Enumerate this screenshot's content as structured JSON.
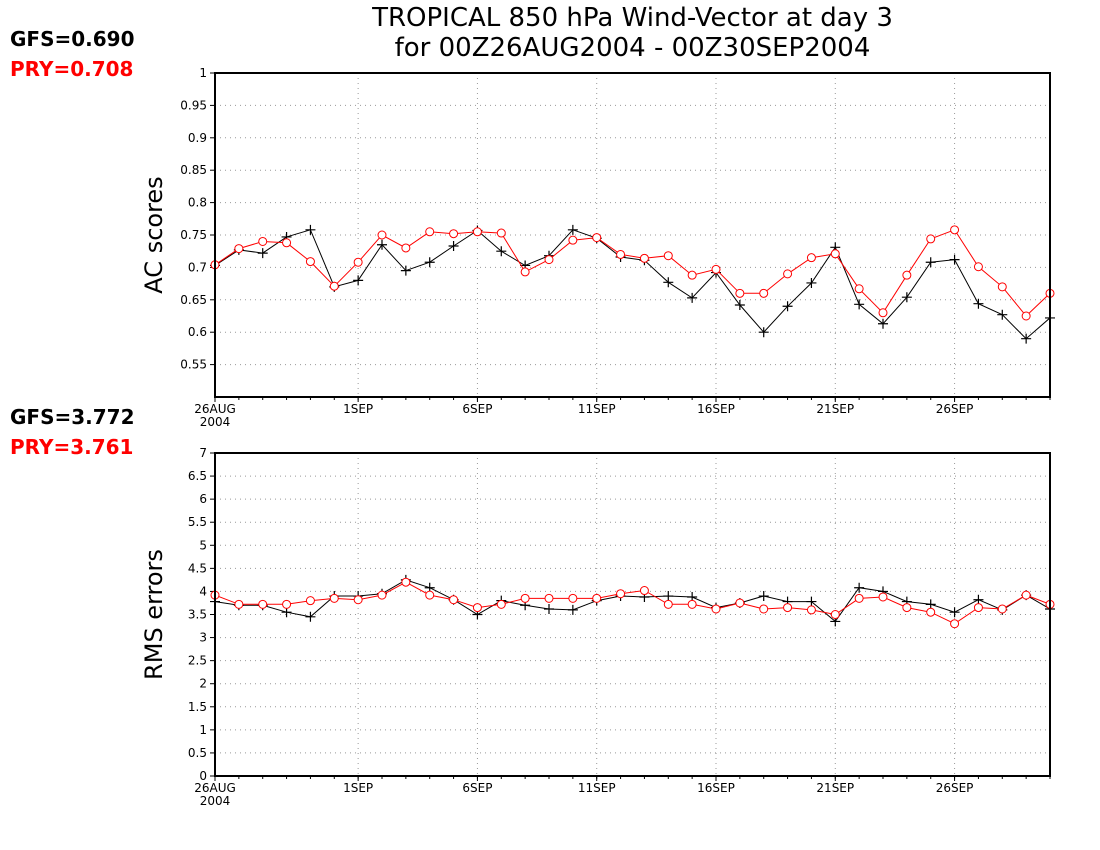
{
  "title_line1": "TROPICAL 850 hPa Wind-Vector at day 3",
  "title_line2": "for 00Z26AUG2004 - 00Z30SEP2004",
  "colors": {
    "GFS": "#000000",
    "PRY": "#ff0000"
  },
  "x_tick_labels": [
    "26AUG",
    "1SEP",
    "6SEP",
    "11SEP",
    "16SEP",
    "21SEP",
    "26SEP"
  ],
  "x_year_label": "2004",
  "chart_data": [
    {
      "type": "line",
      "ylabel": "AC scores",
      "ylim": [
        0.5,
        1.0
      ],
      "yticks": [
        "0.55",
        "0.6",
        "0.65",
        "0.7",
        "0.75",
        "0.8",
        "0.85",
        "0.9",
        "0.95",
        "1"
      ],
      "grid": true,
      "score_text": [
        {
          "series": "GFS",
          "text": "GFS=0.690"
        },
        {
          "series": "PRY",
          "text": "PRY=0.708"
        }
      ],
      "x": [
        "26AUG",
        "27AUG",
        "28AUG",
        "29AUG",
        "30AUG",
        "31AUG",
        "1SEP",
        "2SEP",
        "3SEP",
        "4SEP",
        "5SEP",
        "6SEP",
        "7SEP",
        "8SEP",
        "9SEP",
        "10SEP",
        "11SEP",
        "12SEP",
        "13SEP",
        "14SEP",
        "15SEP",
        "16SEP",
        "17SEP",
        "18SEP",
        "19SEP",
        "20SEP",
        "21SEP",
        "22SEP",
        "23SEP",
        "24SEP",
        "25SEP",
        "26SEP",
        "27SEP",
        "28SEP",
        "29SEP",
        "30SEP"
      ],
      "series": [
        {
          "name": "GFS",
          "marker": "+",
          "values": [
            0.703,
            0.727,
            0.722,
            0.747,
            0.758,
            0.67,
            0.68,
            0.735,
            0.695,
            0.708,
            0.733,
            0.757,
            0.725,
            0.703,
            0.718,
            0.758,
            0.745,
            0.716,
            0.711,
            0.677,
            0.653,
            0.692,
            0.642,
            0.6,
            0.64,
            0.676,
            0.731,
            0.643,
            0.613,
            0.654,
            0.708,
            0.712,
            0.644,
            0.627,
            0.59,
            0.622
          ]
        },
        {
          "name": "PRY",
          "marker": "o",
          "values": [
            0.704,
            0.729,
            0.74,
            0.738,
            0.709,
            0.671,
            0.708,
            0.75,
            0.73,
            0.755,
            0.752,
            0.755,
            0.753,
            0.693,
            0.712,
            0.742,
            0.746,
            0.72,
            0.714,
            0.718,
            0.688,
            0.697,
            0.66,
            0.66,
            0.69,
            0.715,
            0.721,
            0.667,
            0.63,
            0.688,
            0.744,
            0.758,
            0.701,
            0.67,
            0.625,
            0.66
          ]
        }
      ]
    },
    {
      "type": "line",
      "ylabel": "RMS errors",
      "ylim": [
        0,
        7
      ],
      "yticks": [
        "0",
        "0.5",
        "1",
        "1.5",
        "2",
        "2.5",
        "3",
        "3.5",
        "4",
        "4.5",
        "5",
        "5.5",
        "6",
        "6.5",
        "7"
      ],
      "grid": true,
      "score_text": [
        {
          "series": "GFS",
          "text": "GFS=3.772"
        },
        {
          "series": "PRY",
          "text": "PRY=3.761"
        }
      ],
      "x": [
        "26AUG",
        "27AUG",
        "28AUG",
        "29AUG",
        "30AUG",
        "31AUG",
        "1SEP",
        "2SEP",
        "3SEP",
        "4SEP",
        "5SEP",
        "6SEP",
        "7SEP",
        "8SEP",
        "9SEP",
        "10SEP",
        "11SEP",
        "12SEP",
        "13SEP",
        "14SEP",
        "15SEP",
        "16SEP",
        "17SEP",
        "18SEP",
        "19SEP",
        "20SEP",
        "21SEP",
        "22SEP",
        "23SEP",
        "24SEP",
        "25SEP",
        "26SEP",
        "27SEP",
        "28SEP",
        "29SEP",
        "30SEP"
      ],
      "series": [
        {
          "name": "GFS",
          "marker": "+",
          "values": [
            3.78,
            3.7,
            3.7,
            3.55,
            3.45,
            3.9,
            3.9,
            3.95,
            4.25,
            4.08,
            3.82,
            3.5,
            3.8,
            3.7,
            3.62,
            3.6,
            3.8,
            3.9,
            3.88,
            3.9,
            3.88,
            3.65,
            3.75,
            3.9,
            3.78,
            3.78,
            3.35,
            4.08,
            4.0,
            3.78,
            3.72,
            3.55,
            3.82,
            3.6,
            3.92,
            3.62
          ]
        },
        {
          "name": "PRY",
          "marker": "o",
          "values": [
            3.92,
            3.72,
            3.72,
            3.72,
            3.8,
            3.85,
            3.82,
            3.92,
            4.2,
            3.92,
            3.82,
            3.65,
            3.72,
            3.85,
            3.85,
            3.85,
            3.85,
            3.95,
            4.02,
            3.72,
            3.72,
            3.62,
            3.75,
            3.62,
            3.65,
            3.6,
            3.5,
            3.85,
            3.88,
            3.65,
            3.55,
            3.3,
            3.65,
            3.62,
            3.92,
            3.72
          ]
        }
      ]
    }
  ]
}
